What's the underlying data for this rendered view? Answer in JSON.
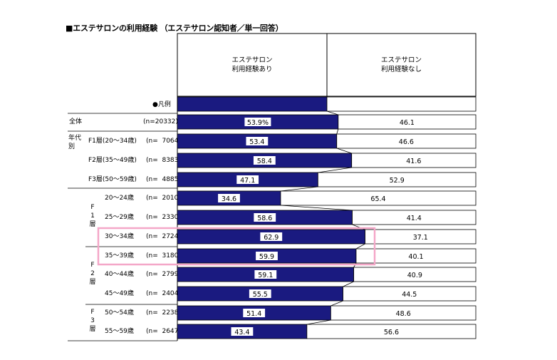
{
  "title": "■エステサロンの利用経験 （エステサロン認知者／単一回答）",
  "columns": [
    "エステサロン\n利用経験あり",
    "エステサロン\n利用経験なし"
  ],
  "legend_label": "●凡例",
  "group_labels": {
    "age_group": "年代別",
    "f1": "F1層",
    "f2": "F2層",
    "f3": "F3層"
  },
  "colors": {
    "bar_yes": "#1a1a80",
    "bar_no": "#ffffff",
    "highlight": "#f4a7c8"
  },
  "chart_data": {
    "type": "bar",
    "orientation": "horizontal",
    "stacked": true,
    "xlim": [
      0,
      100
    ],
    "categories": [
      "全体",
      "F1層(20～34歳)",
      "F2層(35～49歳)",
      "F3層(50～59歳)",
      "20～24歳",
      "25～29歳",
      "30～34歳",
      "35～39歳",
      "40～44歳",
      "45～49歳",
      "50～54歳",
      "55～59歳"
    ],
    "display_labels": [
      "全体",
      "F1層(20～34歳)",
      "F2層(35～49歳)",
      "F3層(50～59歳)",
      "20～24歳",
      "25～29歳",
      "30～34歳",
      "35～39歳",
      "40～44歳",
      "45～49歳",
      "50～54歳",
      "55～59歳"
    ],
    "n_labels": [
      "(n=20332)",
      "(n=  7064)",
      "(n=  8383)",
      "(n=  4885)",
      "(n=  2010)",
      "(n=  2330)",
      "(n=  2724)",
      "(n=  3180)",
      "(n=  2799)",
      "(n=  2404)",
      "(n=  2238)",
      "(n=  2647)"
    ],
    "series": [
      {
        "name": "エステサロン利用経験あり",
        "values": [
          53.9,
          53.4,
          58.4,
          47.1,
          34.6,
          58.6,
          62.9,
          59.9,
          59.1,
          55.5,
          51.4,
          43.4
        ],
        "labels": [
          "53.9%",
          "53.4",
          "58.4",
          "47.1",
          "34.6",
          "58.6",
          "62.9",
          "59.9",
          "59.1",
          "55.5",
          "51.4",
          "43.4"
        ]
      },
      {
        "name": "エステサロン利用経験なし",
        "values": [
          46.1,
          46.6,
          41.6,
          52.9,
          65.4,
          41.4,
          37.1,
          40.1,
          40.9,
          44.5,
          48.6,
          56.6
        ],
        "labels": [
          "46.1",
          "46.6",
          "41.6",
          "52.9",
          "65.4",
          "41.4",
          "37.1",
          "40.1",
          "40.9",
          "44.5",
          "48.6",
          "56.6"
        ]
      }
    ],
    "highlighted_categories": [
      "30～34歳",
      "35～39歳"
    ]
  }
}
